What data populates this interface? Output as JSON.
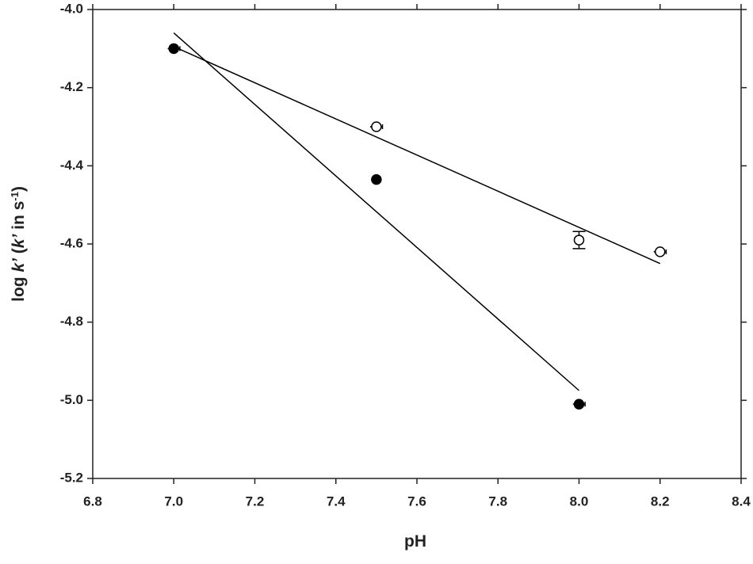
{
  "chart_data": {
    "type": "scatter",
    "x_label": "pH",
    "y_label": [
      "log ",
      "k’",
      " (",
      "k’",
      " in s",
      "-1",
      ")"
    ],
    "xlim": [
      6.8,
      8.4
    ],
    "xticks": [
      {
        "value": 6.8,
        "label": "6.8"
      },
      {
        "value": 7.0,
        "label": "7.0"
      },
      {
        "value": 7.2,
        "label": "7.2"
      },
      {
        "value": 7.4,
        "label": "7.4"
      },
      {
        "value": 7.6,
        "label": "7.6"
      },
      {
        "value": 7.8,
        "label": "7.8"
      },
      {
        "value": 8.0,
        "label": "8.0"
      },
      {
        "value": 8.2,
        "label": "8.2"
      },
      {
        "value": 8.4,
        "label": "8.4"
      }
    ],
    "ylim": [
      -5.2,
      -4.0
    ],
    "yticks": [
      {
        "value": -5.2,
        "label": "-5.2"
      },
      {
        "value": -5.0,
        "label": "-5.0"
      },
      {
        "value": -4.8,
        "label": "-4.8"
      },
      {
        "value": -4.6,
        "label": "-4.6"
      },
      {
        "value": -4.4,
        "label": "-4.4"
      },
      {
        "value": -4.2,
        "label": "-4.2"
      },
      {
        "value": -4.0,
        "label": "-4.0"
      }
    ],
    "series": [
      {
        "color": "#000000",
        "fill": "#000000",
        "x": [
          7.0,
          7.5,
          8.0
        ],
        "values": [
          -4.1,
          -4.435,
          -5.01
        ],
        "xerr": [
          0.015,
          0.01,
          0.015
        ]
      },
      {
        "color": "#000000",
        "fill": "#ffffff",
        "x": [
          7.5,
          8.0,
          8.2
        ],
        "values": [
          -4.3,
          -4.59,
          -4.62
        ],
        "xerr": [
          0.015,
          0.0,
          0.015
        ],
        "yerr": [
          0.0,
          0.022,
          0.0
        ]
      }
    ],
    "fit_lines": [
      {
        "color": "#000000",
        "x": [
          7.0,
          8.0
        ],
        "values": [
          -4.06,
          -4.975
        ]
      },
      {
        "color": "#000000",
        "x": [
          7.0,
          8.2
        ],
        "values": [
          -4.095,
          -4.65
        ]
      }
    ]
  }
}
